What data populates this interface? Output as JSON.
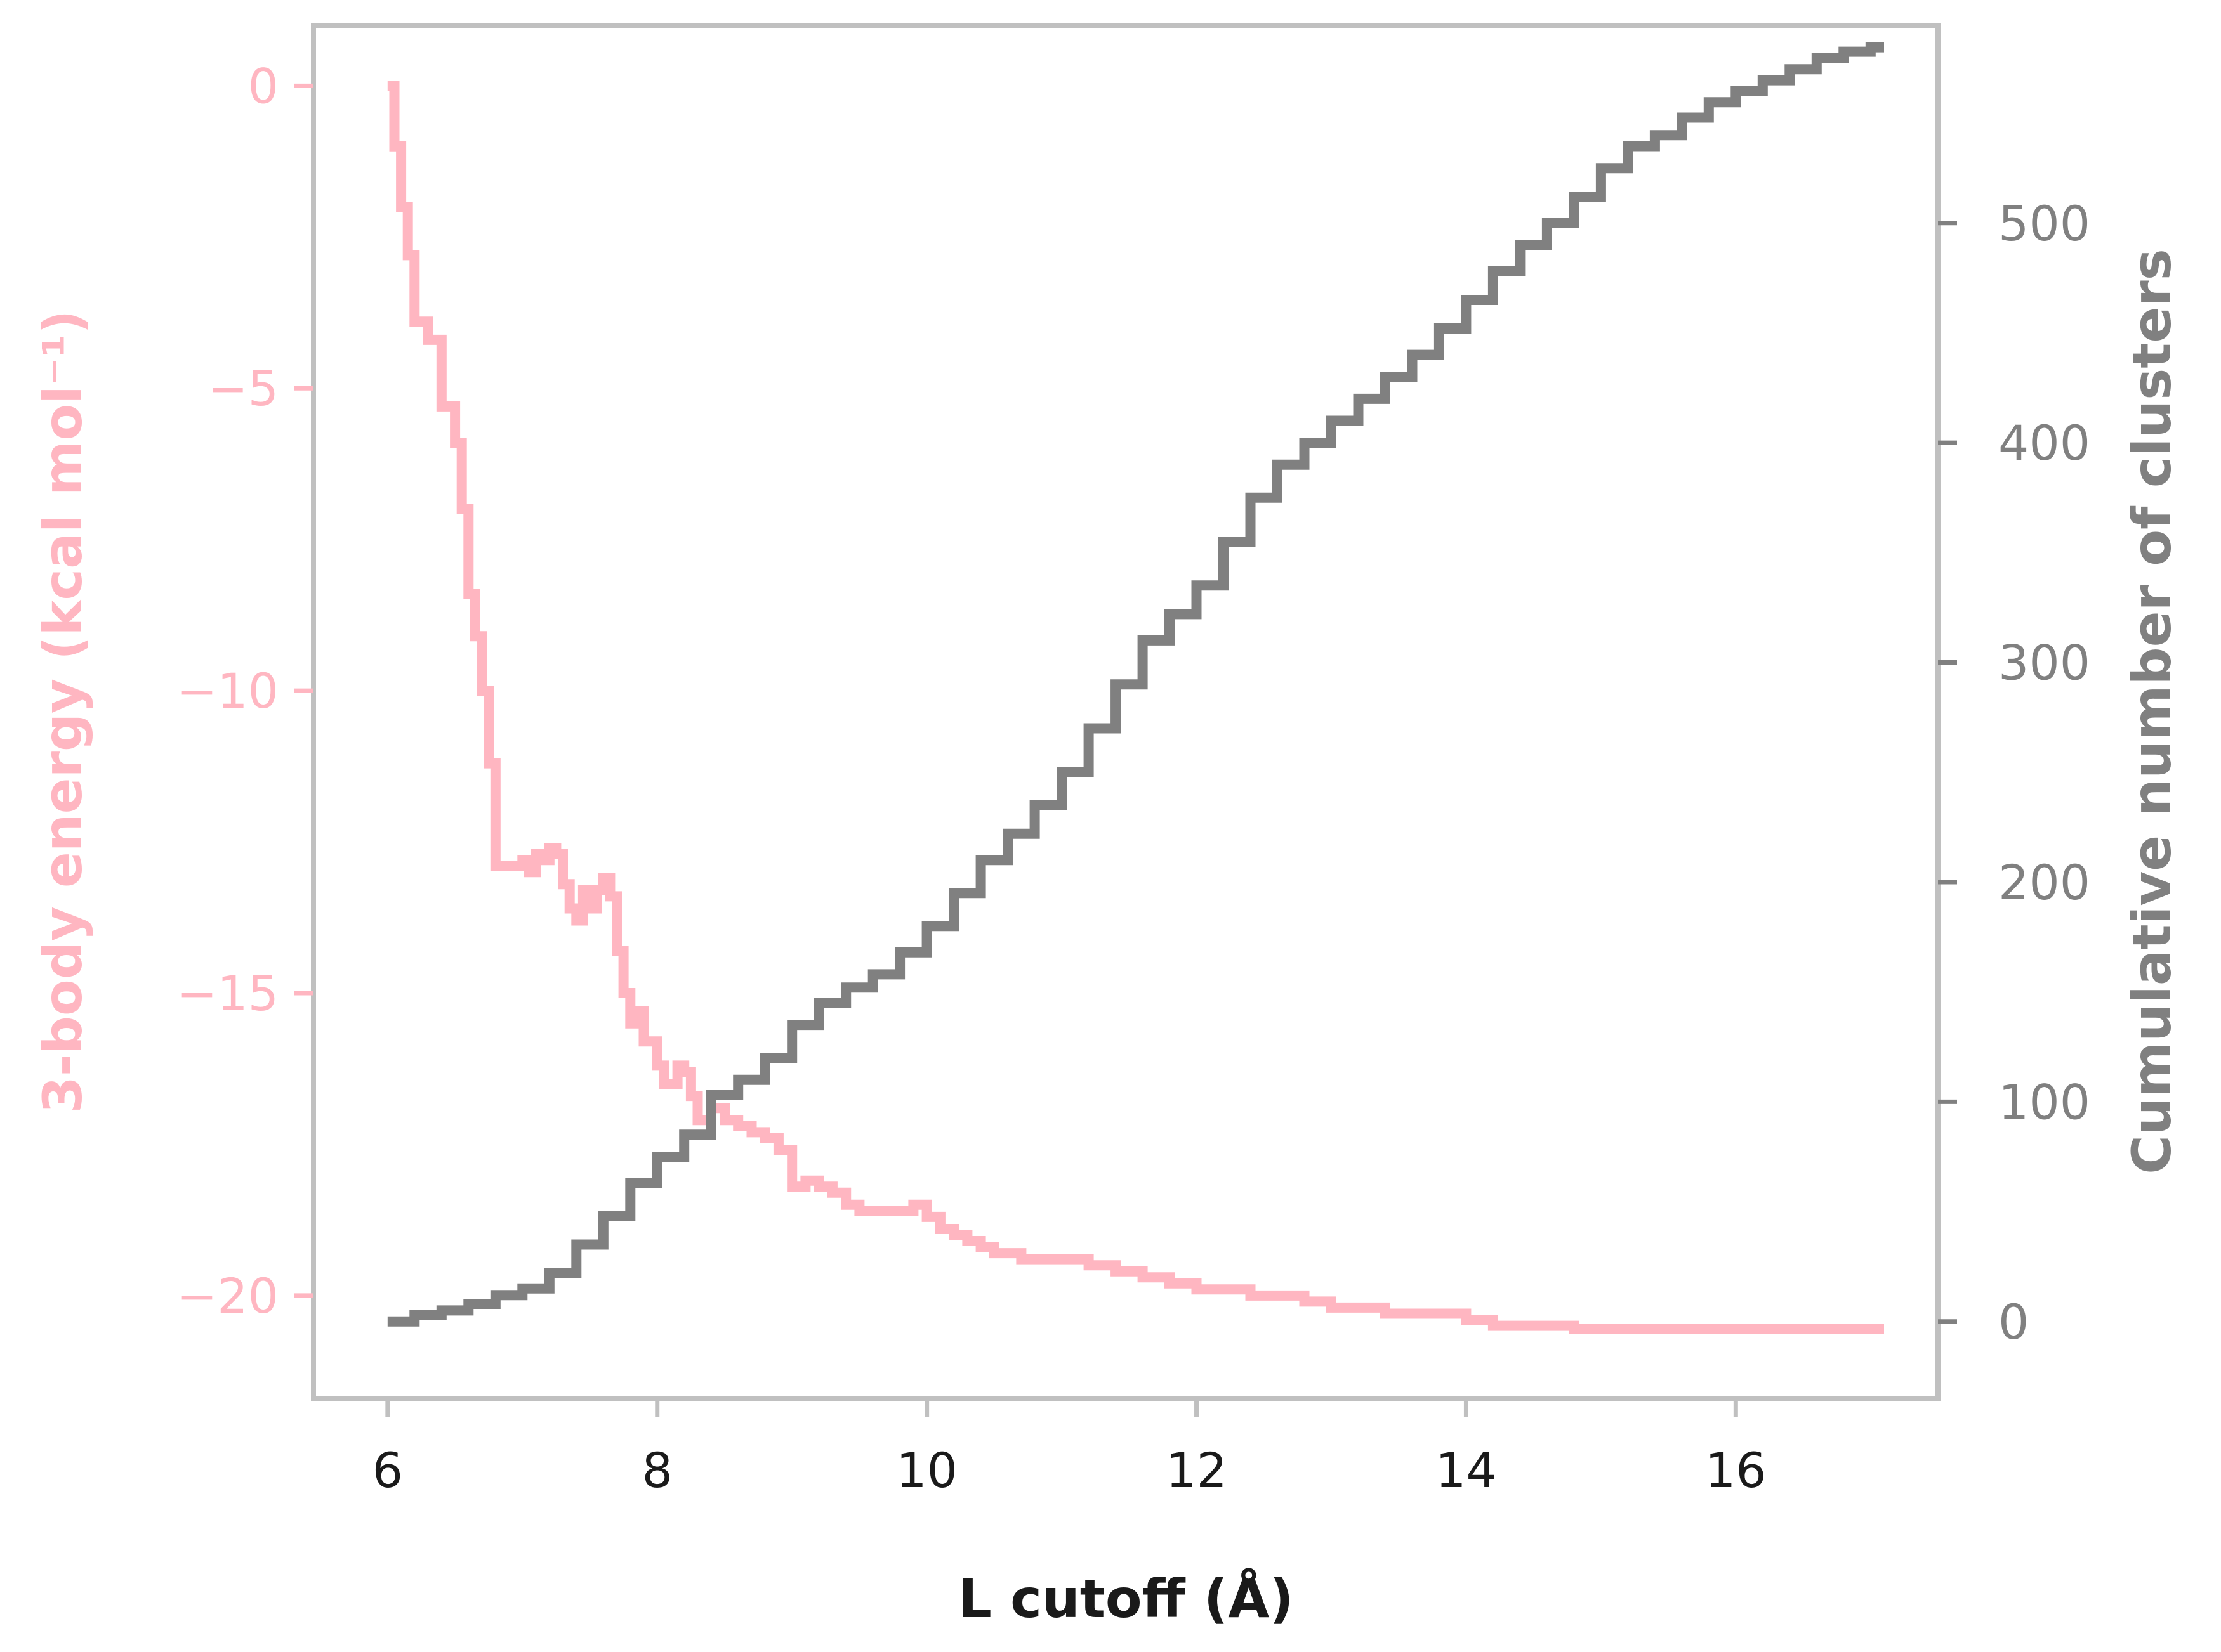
{
  "chart_data": {
    "type": "line",
    "title": "",
    "xlabel": "L cutoff (Å)",
    "xlim": [
      5.45,
      17.5
    ],
    "x_ticks": [
      6,
      8,
      10,
      12,
      14,
      16
    ],
    "y_left": {
      "label": "3-body energy (kcal mol⁻¹)",
      "ylim": [
        -21.7,
        1.0
      ],
      "ticks": [
        0,
        -5,
        -10,
        -15,
        -20
      ],
      "tick_labels": [
        "0",
        "−5",
        "−10",
        "−15",
        "−20"
      ],
      "color": "#ffb6c1"
    },
    "y_right": {
      "label": "Cumulative number of clusters",
      "ylim": [
        -35,
        590
      ],
      "ticks": [
        0,
        100,
        200,
        300,
        400,
        500
      ],
      "tick_labels": [
        "0",
        "100",
        "200",
        "300",
        "400",
        "500"
      ],
      "color": "#808080"
    },
    "grid": false,
    "legend": "none",
    "axes_color": "#c0c0c0",
    "tick_label_color": "#1a1a1a",
    "series": [
      {
        "axis": "left",
        "color": "#ffb6c1",
        "step": true,
        "x": [
          6.0,
          6.05,
          6.1,
          6.15,
          6.2,
          6.3,
          6.4,
          6.5,
          6.55,
          6.6,
          6.65,
          6.7,
          6.75,
          6.8,
          6.9,
          7.0,
          7.05,
          7.1,
          7.15,
          7.2,
          7.25,
          7.3,
          7.35,
          7.4,
          7.45,
          7.5,
          7.55,
          7.6,
          7.65,
          7.7,
          7.75,
          7.8,
          7.85,
          7.9,
          7.95,
          8.0,
          8.05,
          8.1,
          8.15,
          8.2,
          8.25,
          8.3,
          8.4,
          8.5,
          8.6,
          8.7,
          8.8,
          8.9,
          9.0,
          9.1,
          9.2,
          9.3,
          9.4,
          9.5,
          9.6,
          9.7,
          9.8,
          9.9,
          10.0,
          10.1,
          10.2,
          10.3,
          10.4,
          10.5,
          10.6,
          10.7,
          10.8,
          10.9,
          11.0,
          11.2,
          11.4,
          11.6,
          11.8,
          12.0,
          12.2,
          12.4,
          12.6,
          12.8,
          13.0,
          13.2,
          13.4,
          13.6,
          13.8,
          14.0,
          14.2,
          14.4,
          14.6,
          14.8,
          15.0,
          15.3,
          15.6,
          16.0,
          16.5,
          17.0,
          17.1
        ],
        "values": [
          0.0,
          -1.0,
          -2.0,
          -2.8,
          -3.9,
          -4.2,
          -5.3,
          -5.9,
          -7.0,
          -8.4,
          -9.1,
          -10.0,
          -11.2,
          -12.9,
          -12.9,
          -12.8,
          -13.0,
          -12.7,
          -12.8,
          -12.6,
          -12.7,
          -13.2,
          -13.6,
          -13.8,
          -13.3,
          -13.6,
          -13.3,
          -13.1,
          -13.4,
          -14.3,
          -15.0,
          -15.5,
          -15.3,
          -15.8,
          -15.8,
          -16.2,
          -16.5,
          -16.5,
          -16.2,
          -16.3,
          -16.7,
          -17.1,
          -16.9,
          -17.1,
          -17.2,
          -17.3,
          -17.4,
          -17.6,
          -18.2,
          -18.1,
          -18.2,
          -18.3,
          -18.5,
          -18.6,
          -18.6,
          -18.6,
          -18.6,
          -18.5,
          -18.7,
          -18.9,
          -19.0,
          -19.1,
          -19.2,
          -19.3,
          -19.3,
          -19.4,
          -19.4,
          -19.4,
          -19.4,
          -19.5,
          -19.6,
          -19.7,
          -19.8,
          -19.9,
          -19.9,
          -20.0,
          -20.0,
          -20.1,
          -20.2,
          -20.2,
          -20.3,
          -20.3,
          -20.3,
          -20.4,
          -20.5,
          -20.5,
          -20.5,
          -20.55,
          -20.55,
          -20.55,
          -20.55,
          -20.55,
          -20.55,
          -20.55,
          -20.55
        ]
      },
      {
        "axis": "right",
        "color": "#808080",
        "step": true,
        "x": [
          6.0,
          6.2,
          6.4,
          6.6,
          6.8,
          7.0,
          7.2,
          7.4,
          7.6,
          7.8,
          8.0,
          8.2,
          8.4,
          8.6,
          8.8,
          9.0,
          9.2,
          9.4,
          9.6,
          9.8,
          10.0,
          10.2,
          10.4,
          10.6,
          10.8,
          11.0,
          11.2,
          11.4,
          11.6,
          11.8,
          12.0,
          12.2,
          12.4,
          12.6,
          12.8,
          13.0,
          13.2,
          13.4,
          13.6,
          13.8,
          14.0,
          14.2,
          14.4,
          14.6,
          14.8,
          15.0,
          15.2,
          15.4,
          15.6,
          15.8,
          16.0,
          16.2,
          16.4,
          16.6,
          16.8,
          17.0,
          17.1
        ],
        "values": [
          0,
          3,
          5,
          8,
          12,
          15,
          22,
          35,
          48,
          63,
          75,
          85,
          103,
          110,
          120,
          135,
          145,
          152,
          158,
          168,
          180,
          195,
          210,
          222,
          235,
          250,
          270,
          290,
          310,
          322,
          335,
          355,
          375,
          390,
          400,
          410,
          420,
          430,
          440,
          452,
          465,
          478,
          490,
          500,
          512,
          525,
          535,
          540,
          548,
          555,
          560,
          565,
          570,
          575,
          578,
          580,
          580
        ]
      }
    ]
  }
}
